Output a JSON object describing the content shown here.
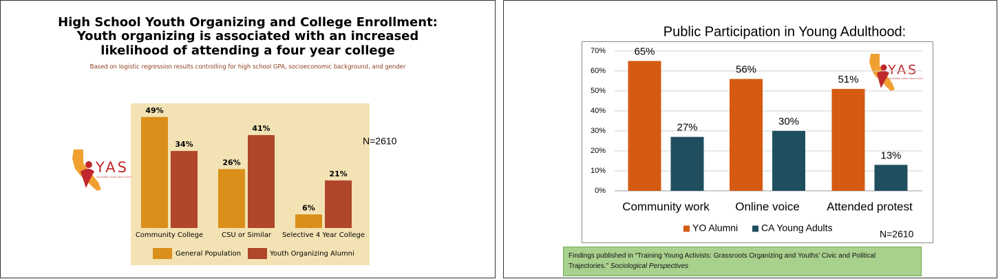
{
  "chart_data": [
    {
      "type": "bar",
      "title": [
        "High School Youth Organizing and College Enrollment:",
        "Youth organizing is associated with an increased",
        "likelihood of attending a four year college"
      ],
      "subtitle": "Based on logistic regression results controlling for high school GPA, socioeconomic background, and gender",
      "categories": [
        "Community College",
        "CSU or Similar",
        "Selective 4 Year College"
      ],
      "series": [
        {
          "name": "General Population",
          "color": "#d98f1a",
          "values": [
            49,
            26,
            6
          ],
          "value_labels": [
            "49%",
            "26%",
            "6%"
          ]
        },
        {
          "name": "Youth Organizing Alumni",
          "color": "#b0462a",
          "values": [
            34,
            41,
            21
          ],
          "value_labels": [
            "34%",
            "41%",
            "21%"
          ]
        }
      ],
      "annotation": "N=2610",
      "logo": {
        "text": "YAS",
        "subtext": "CALIFORNIA YOUNG ADULT STUDY"
      }
    },
    {
      "type": "bar",
      "title": [
        "Public Participation in Young Adulthood:"
      ],
      "categories": [
        "Community work",
        "Online voice",
        "Attended protest"
      ],
      "series": [
        {
          "name": "YO Alumni",
          "color": "#d55a12",
          "values": [
            65,
            56,
            51
          ],
          "value_labels": [
            "65%",
            "56%",
            "51%"
          ]
        },
        {
          "name": "CA Young Adults",
          "color": "#1f4e5f",
          "values": [
            27,
            30,
            13
          ],
          "value_labels": [
            "27%",
            "30%",
            "13%"
          ]
        }
      ],
      "ylim": [
        0,
        70
      ],
      "yticks": [
        {
          "value": 0,
          "label": "0%"
        },
        {
          "value": 10,
          "label": "10%"
        },
        {
          "value": 20,
          "label": "20%"
        },
        {
          "value": 30,
          "label": "30%"
        },
        {
          "value": 40,
          "label": "40%"
        },
        {
          "value": 50,
          "label": "50%"
        },
        {
          "value": 60,
          "label": "60%"
        },
        {
          "value": 70,
          "label": "70%"
        }
      ],
      "grid": true,
      "legend": "bottom",
      "annotation": "N=2610",
      "logo": {
        "text": "YAS",
        "subtext": "CALIFORNIA YOUNG ADULT STUDY"
      },
      "footnote": {
        "text": "Findings published in “Training Young Activists: Grassroots Organizing and Youths’ Civic and Political Trajectories.”",
        "journal": "Sociological Perspectives"
      }
    }
  ]
}
